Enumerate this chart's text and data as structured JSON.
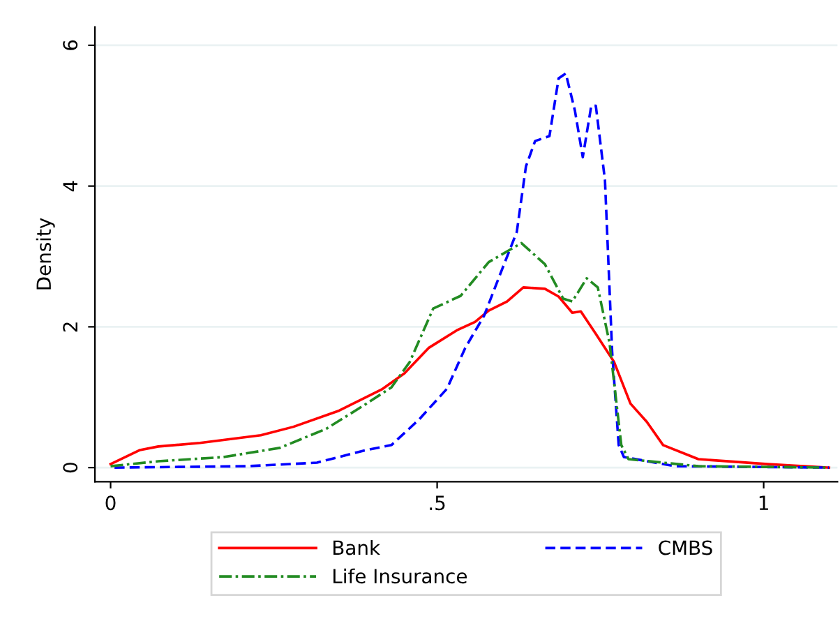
{
  "chart_data": {
    "type": "line",
    "ylabel": "Density",
    "xlim": [
      -0.024,
      1.113
    ],
    "ylim": [
      -0.2,
      6.26
    ],
    "xticks": [
      0,
      {
        "value": 0.5,
        "label": ".5"
      },
      1
    ],
    "yticks": [
      0,
      2,
      4,
      6
    ],
    "grid": "y",
    "legend": "bottom",
    "series": [
      {
        "name": "Bank",
        "color": "#ff0000",
        "line_style": "solid",
        "x": [
          0,
          0.045,
          0.073,
          0.137,
          0.23,
          0.28,
          0.35,
          0.415,
          0.45,
          0.487,
          0.53,
          0.558,
          0.579,
          0.607,
          0.632,
          0.665,
          0.686,
          0.707,
          0.72,
          0.743,
          0.771,
          0.796,
          0.821,
          0.846,
          0.9,
          1.006,
          1.1
        ],
        "values": [
          0.05,
          0.25,
          0.3,
          0.35,
          0.46,
          0.58,
          0.81,
          1.11,
          1.34,
          1.7,
          1.95,
          2.07,
          2.23,
          2.36,
          2.56,
          2.54,
          2.43,
          2.2,
          2.22,
          1.9,
          1.5,
          0.91,
          0.65,
          0.32,
          0.12,
          0.05,
          0
        ]
      },
      {
        "name": "CMBS",
        "color": "#0000ff",
        "line_style": "dashed",
        "x": [
          0.006,
          0.209,
          0.316,
          0.387,
          0.43,
          0.472,
          0.515,
          0.543,
          0.572,
          0.6,
          0.622,
          0.636,
          0.65,
          0.672,
          0.686,
          0.697,
          0.711,
          0.723,
          0.736,
          0.743,
          0.757,
          0.768,
          0.778,
          0.786,
          0.864,
          1.1
        ],
        "values": [
          0,
          0.02,
          0.07,
          0.24,
          0.32,
          0.68,
          1.12,
          1.7,
          2.16,
          2.83,
          3.35,
          4.28,
          4.64,
          4.71,
          5.53,
          5.6,
          5.07,
          4.41,
          5.14,
          5.14,
          4.08,
          1.64,
          0.32,
          0.15,
          0.02,
          0
        ]
      },
      {
        "name": "Life Insurance",
        "color": "#228b22",
        "line_style": "dashdot",
        "x": [
          0,
          0.073,
          0.173,
          0.259,
          0.33,
          0.387,
          0.43,
          0.458,
          0.494,
          0.536,
          0.579,
          0.629,
          0.665,
          0.693,
          0.707,
          0.729,
          0.746,
          0.764,
          0.782,
          0.793,
          0.9,
          1.1
        ],
        "values": [
          0.02,
          0.09,
          0.15,
          0.28,
          0.55,
          0.88,
          1.14,
          1.5,
          2.26,
          2.44,
          2.92,
          3.19,
          2.89,
          2.4,
          2.36,
          2.69,
          2.56,
          1.77,
          0.32,
          0.12,
          0.02,
          0
        ]
      }
    ]
  }
}
